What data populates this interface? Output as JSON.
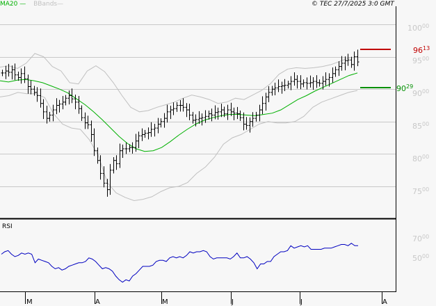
{
  "header": {
    "legend_ma": "MA20",
    "legend_bb": "BBands",
    "copyright": "© TEC 27/7/2025 3:0 GMT"
  },
  "colors": {
    "background": "#f7f7f7",
    "grid": "#c8c8c8",
    "price_bars": "#000000",
    "ma20": "#00b000",
    "bbands": "#c0c0c0",
    "resistance": "#c00000",
    "support": "#009000",
    "rsi": "#0000c0"
  },
  "levels": {
    "resistance": {
      "int": "96",
      "dec": "13",
      "value": 96.13
    },
    "support": {
      "int": "90",
      "dec": "29",
      "value": 90.29
    }
  },
  "y_axis": [
    {
      "int": "100",
      "dec": "00"
    },
    {
      "int": "95",
      "dec": "00"
    },
    {
      "int": "90",
      "dec": "00"
    },
    {
      "int": "85",
      "dec": "00"
    },
    {
      "int": "80",
      "dec": "00"
    },
    {
      "int": "75",
      "dec": "00"
    }
  ],
  "rsi_panel": {
    "title": "RSI",
    "y_axis": [
      {
        "int": "70",
        "dec": "00"
      },
      {
        "int": "50",
        "dec": "00"
      }
    ]
  },
  "x_axis": [
    "M",
    "A",
    "M",
    "J",
    "J",
    "A"
  ],
  "chart_data": {
    "type": "line",
    "title": "",
    "xlabel": "",
    "ylabel": "",
    "ylim": [
      72,
      102
    ],
    "x_ticks": [
      "M",
      "A",
      "M",
      "J",
      "J",
      "A"
    ],
    "y_ticks": [
      75,
      80,
      85,
      90,
      95,
      100
    ],
    "legend": [
      "MA20",
      "BBands"
    ],
    "grid": true,
    "annotations": [
      {
        "label": "96.13",
        "type": "horizontal-level",
        "color": "#c00000"
      },
      {
        "label": "90.29",
        "type": "horizontal-level",
        "color": "#009000"
      }
    ],
    "series": [
      {
        "name": "Price (OHLC bars, close approx.)",
        "values": [
          92.5,
          92.8,
          92.6,
          93.0,
          92.2,
          91.8,
          92.4,
          91.6,
          90.4,
          90.0,
          89.5,
          89.0,
          87.8,
          86.5,
          85.5,
          86.0,
          86.8,
          87.5,
          87.7,
          88.0,
          88.6,
          89.0,
          88.5,
          88.0,
          87.0,
          85.6,
          84.8,
          84.5,
          83.0,
          80.5,
          79.0,
          77.0,
          75.5,
          74.5,
          77.5,
          79.0,
          78.5,
          80.5,
          80.8,
          80.8,
          81.0,
          81.0,
          82.0,
          82.8,
          83.0,
          83.2,
          83.3,
          83.8,
          84.0,
          84.6,
          85.0,
          85.5,
          86.5,
          86.8,
          87.0,
          87.5,
          87.5,
          87.2,
          86.8,
          86.0,
          85.2,
          85.3,
          85.5,
          85.6,
          85.8,
          86.2,
          86.0,
          86.4,
          86.5,
          86.8,
          86.2,
          86.8,
          86.5,
          86.3,
          86.2,
          85.6,
          84.6,
          84.4,
          85.0,
          85.5,
          86.0,
          86.8,
          87.8,
          88.8,
          89.5,
          90.0,
          90.2,
          90.4,
          90.5,
          90.6,
          90.8,
          91.2,
          91.5,
          91.2,
          90.8,
          91.0,
          90.9,
          91.0,
          91.2,
          91.0,
          90.9,
          91.2,
          91.5,
          91.8,
          92.4,
          93.0,
          93.5,
          94.0,
          94.4,
          94.5,
          93.8,
          95.0,
          94.2
        ]
      },
      {
        "name": "MA20",
        "values": [
          91.3,
          91.1,
          91.4,
          91.5,
          91.3,
          91.0,
          90.5,
          90.0,
          89.4,
          88.5,
          87.6,
          86.5,
          85.3,
          84.0,
          82.7,
          81.6,
          80.8,
          80.4,
          80.5,
          81.0,
          81.9,
          82.9,
          83.8,
          84.6,
          85.2,
          85.6,
          85.9,
          86.1,
          86.1,
          86.0,
          85.9,
          86.1,
          86.3,
          86.8,
          87.6,
          88.4,
          89.0,
          89.7,
          90.3,
          90.9,
          91.5,
          92.1,
          92.5
        ]
      },
      {
        "name": "BBand upper",
        "values": [
          93.4,
          93.6,
          93.2,
          94.0,
          95.5,
          95.0,
          93.5,
          92.8,
          91.0,
          90.8,
          92.8,
          93.6,
          92.7,
          91.0,
          89.0,
          87.2,
          86.5,
          86.7,
          87.2,
          87.6,
          88.0,
          88.6,
          89.1,
          88.8,
          88.4,
          87.8,
          88.0,
          88.6,
          88.4,
          89.1,
          89.8,
          90.8,
          92.3,
          93.1,
          93.3,
          93.2,
          93.3,
          93.5,
          93.8,
          94.3,
          94.8,
          95.0
        ]
      },
      {
        "name": "BBand lower",
        "values": [
          88.8,
          89.0,
          89.5,
          89.3,
          89.3,
          88.7,
          86.2,
          84.6,
          84.0,
          83.8,
          82.2,
          79.8,
          75.6,
          74.0,
          73.3,
          72.8,
          73.0,
          73.4,
          74.2,
          74.8,
          75.0,
          75.6,
          77.0,
          78.0,
          79.5,
          81.5,
          82.5,
          83.0,
          83.8,
          84.6,
          85.0,
          84.8,
          84.8,
          85.0,
          85.8,
          87.2,
          88.0,
          88.5,
          89.0,
          89.5,
          89.8
        ]
      },
      {
        "name": "RSI",
        "values": [
          56,
          58,
          59,
          56,
          54,
          55,
          57,
          56,
          57,
          56,
          49,
          52,
          51,
          50,
          49,
          46,
          44,
          45,
          43,
          44,
          46,
          47,
          48,
          49,
          49,
          50,
          53,
          52,
          50,
          47,
          44,
          45,
          44,
          42,
          38,
          35,
          33,
          35,
          34,
          38,
          40,
          43,
          46,
          46,
          46,
          47,
          50,
          51,
          51,
          50,
          53,
          54,
          53,
          54,
          53,
          55,
          58,
          57,
          58,
          58,
          59,
          58,
          54,
          52,
          53,
          53,
          53,
          53,
          52,
          54,
          57,
          53,
          53,
          54,
          52,
          49,
          44,
          48,
          48,
          50,
          50,
          54,
          56,
          58,
          58,
          59,
          63,
          61,
          62,
          63,
          62,
          63,
          60,
          60,
          60,
          60,
          61,
          61,
          61,
          62,
          63,
          64,
          64,
          63,
          65,
          63,
          63
        ]
      }
    ]
  }
}
